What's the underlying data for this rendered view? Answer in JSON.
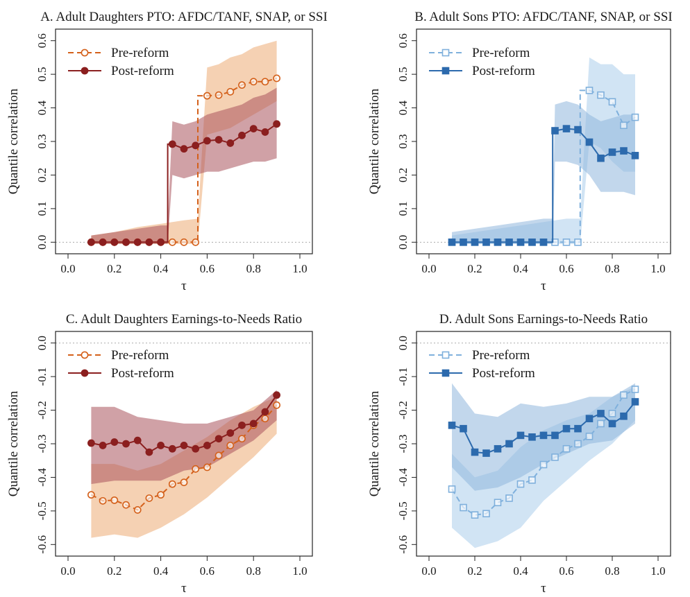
{
  "chart_data": [
    {
      "type": "line",
      "title": "A. Adult Daughters PTO: AFDC/TANF, SNAP, or SSI",
      "xlabel": "τ",
      "ylabel": "Quantile correlation",
      "xlim": [
        0.0,
        1.0
      ],
      "ylim": [
        -0.02,
        0.62
      ],
      "xticks": [
        0.0,
        0.2,
        0.4,
        0.6,
        0.8,
        1.0
      ],
      "xtick_labels": [
        "0.0",
        "0.2",
        "0.4",
        "0.6",
        "0.8",
        "1.0"
      ],
      "yticks": [
        0.0,
        0.1,
        0.2,
        0.3,
        0.4,
        0.5,
        0.6
      ],
      "ytick_labels": [
        "0.0",
        "0.1",
        "0.2",
        "0.3",
        "0.4",
        "0.5",
        "0.6"
      ],
      "legend_position": "top-left",
      "zero_line": true,
      "marker": "circle",
      "series": [
        {
          "name": "Pre-reform",
          "style": "dashed",
          "filled": false,
          "color": "#d4601a",
          "band_color": "#f3c9a6",
          "x": [
            0.1,
            0.15,
            0.2,
            0.25,
            0.3,
            0.35,
            0.4,
            0.45,
            0.5,
            0.55,
            0.6,
            0.65,
            0.7,
            0.75,
            0.8,
            0.85,
            0.9
          ],
          "y": [
            0.0,
            0.0,
            0.0,
            0.0,
            0.0,
            0.0,
            0.0,
            0.0,
            0.0,
            0.0,
            0.436,
            0.438,
            0.448,
            0.468,
            0.478,
            0.478,
            0.488
          ],
          "band_x": [
            0.1,
            0.2,
            0.3,
            0.4,
            0.5,
            0.56,
            0.6,
            0.65,
            0.7,
            0.75,
            0.8,
            0.85,
            0.9
          ],
          "band_lower": [
            -0.005,
            -0.005,
            -0.005,
            -0.005,
            -0.005,
            -0.005,
            0.32,
            0.33,
            0.34,
            0.36,
            0.38,
            0.4,
            0.42
          ],
          "band_upper": [
            0.02,
            0.03,
            0.045,
            0.055,
            0.065,
            0.07,
            0.52,
            0.53,
            0.55,
            0.56,
            0.58,
            0.59,
            0.6
          ],
          "step_x": 0.56
        },
        {
          "name": "Post-reform",
          "style": "solid",
          "filled": true,
          "color": "#8b1f1f",
          "band_color": "#a9545c",
          "x": [
            0.1,
            0.15,
            0.2,
            0.25,
            0.3,
            0.35,
            0.4,
            0.45,
            0.5,
            0.55,
            0.6,
            0.65,
            0.7,
            0.75,
            0.8,
            0.85,
            0.9
          ],
          "y": [
            0.0,
            0.0,
            0.0,
            0.0,
            0.0,
            0.0,
            0.0,
            0.292,
            0.278,
            0.288,
            0.302,
            0.305,
            0.295,
            0.318,
            0.338,
            0.328,
            0.352
          ],
          "band_x": [
            0.1,
            0.2,
            0.3,
            0.4,
            0.43,
            0.45,
            0.5,
            0.55,
            0.6,
            0.65,
            0.7,
            0.75,
            0.8,
            0.85,
            0.9
          ],
          "band_lower": [
            -0.005,
            -0.005,
            -0.005,
            -0.005,
            -0.005,
            0.2,
            0.19,
            0.2,
            0.21,
            0.21,
            0.22,
            0.23,
            0.24,
            0.24,
            0.25
          ],
          "band_upper": [
            0.02,
            0.03,
            0.04,
            0.05,
            0.05,
            0.36,
            0.35,
            0.36,
            0.38,
            0.39,
            0.4,
            0.41,
            0.43,
            0.44,
            0.46
          ],
          "step_x": 0.43
        }
      ]
    },
    {
      "type": "line",
      "title": "B. Adult Sons PTO: AFDC/TANF, SNAP, or SSI",
      "xlabel": "τ",
      "ylabel": "Quantile correlation",
      "xlim": [
        0.0,
        1.0
      ],
      "ylim": [
        -0.02,
        0.62
      ],
      "xticks": [
        0.0,
        0.2,
        0.4,
        0.6,
        0.8,
        1.0
      ],
      "xtick_labels": [
        "0.0",
        "0.2",
        "0.4",
        "0.6",
        "0.8",
        "1.0"
      ],
      "yticks": [
        0.0,
        0.1,
        0.2,
        0.3,
        0.4,
        0.5,
        0.6
      ],
      "ytick_labels": [
        "0.0",
        "0.1",
        "0.2",
        "0.3",
        "0.4",
        "0.5",
        "0.6"
      ],
      "legend_position": "top-left",
      "zero_line": true,
      "marker": "square",
      "series": [
        {
          "name": "Pre-reform",
          "style": "dashed",
          "filled": false,
          "color": "#7fb0dc",
          "band_color": "#c9dff2",
          "x": [
            0.1,
            0.15,
            0.2,
            0.25,
            0.3,
            0.35,
            0.4,
            0.45,
            0.5,
            0.55,
            0.6,
            0.65,
            0.7,
            0.75,
            0.8,
            0.85,
            0.9
          ],
          "y": [
            0.0,
            0.0,
            0.0,
            0.0,
            0.0,
            0.0,
            0.0,
            0.0,
            0.0,
            0.0,
            0.0,
            0.0,
            0.452,
            0.438,
            0.418,
            0.348,
            0.372
          ],
          "band_x": [
            0.1,
            0.2,
            0.3,
            0.4,
            0.5,
            0.6,
            0.66,
            0.7,
            0.75,
            0.8,
            0.85,
            0.9
          ],
          "band_lower": [
            -0.005,
            -0.005,
            -0.005,
            -0.005,
            -0.005,
            -0.005,
            -0.005,
            0.3,
            0.28,
            0.24,
            0.21,
            0.21
          ],
          "band_upper": [
            0.02,
            0.03,
            0.04,
            0.05,
            0.06,
            0.07,
            0.07,
            0.55,
            0.53,
            0.53,
            0.5,
            0.5
          ],
          "step_x": 0.66
        },
        {
          "name": "Post-reform",
          "style": "solid",
          "filled": true,
          "color": "#2c6aad",
          "band_color": "#8fb6dd",
          "x": [
            0.1,
            0.15,
            0.2,
            0.25,
            0.3,
            0.35,
            0.4,
            0.45,
            0.5,
            0.55,
            0.6,
            0.65,
            0.7,
            0.75,
            0.8,
            0.85,
            0.9
          ],
          "y": [
            0.0,
            0.0,
            0.0,
            0.0,
            0.0,
            0.0,
            0.0,
            0.0,
            0.0,
            0.332,
            0.338,
            0.335,
            0.298,
            0.25,
            0.268,
            0.272,
            0.258
          ],
          "band_x": [
            0.1,
            0.2,
            0.3,
            0.4,
            0.5,
            0.54,
            0.55,
            0.6,
            0.65,
            0.7,
            0.75,
            0.8,
            0.85,
            0.9
          ],
          "band_lower": [
            -0.005,
            -0.005,
            -0.005,
            -0.005,
            -0.005,
            -0.005,
            0.24,
            0.24,
            0.23,
            0.2,
            0.15,
            0.15,
            0.15,
            0.14
          ],
          "band_upper": [
            0.03,
            0.04,
            0.05,
            0.06,
            0.07,
            0.07,
            0.41,
            0.42,
            0.41,
            0.38,
            0.36,
            0.37,
            0.38,
            0.38
          ],
          "step_x": 0.54
        }
      ]
    },
    {
      "type": "line",
      "title": "C. Adult Daughters Earnings-to-Needs Ratio",
      "xlabel": "τ",
      "ylabel": "Quantile correlation",
      "xlim": [
        0.0,
        1.0
      ],
      "ylim": [
        -0.62,
        0.02
      ],
      "xticks": [
        0.0,
        0.2,
        0.4,
        0.6,
        0.8,
        1.0
      ],
      "xtick_labels": [
        "0.0",
        "0.2",
        "0.4",
        "0.6",
        "0.8",
        "1.0"
      ],
      "yticks": [
        0.0,
        -0.1,
        -0.2,
        -0.3,
        -0.4,
        -0.5,
        -0.6
      ],
      "ytick_labels": [
        "0.0",
        "-0.1",
        "-0.2",
        "-0.3",
        "-0.4",
        "-0.5",
        "-0.6"
      ],
      "legend_position": "top-left",
      "zero_line": true,
      "marker": "circle",
      "series": [
        {
          "name": "Pre-reform",
          "style": "dashed",
          "filled": false,
          "color": "#d4601a",
          "band_color": "#f3c9a6",
          "x": [
            0.1,
            0.15,
            0.2,
            0.25,
            0.3,
            0.35,
            0.4,
            0.45,
            0.5,
            0.55,
            0.6,
            0.65,
            0.7,
            0.75,
            0.8,
            0.85,
            0.9
          ],
          "y": [
            -0.452,
            -0.47,
            -0.468,
            -0.482,
            -0.497,
            -0.462,
            -0.452,
            -0.42,
            -0.415,
            -0.375,
            -0.37,
            -0.335,
            -0.305,
            -0.285,
            -0.245,
            -0.225,
            -0.185
          ],
          "band_x": [
            0.1,
            0.2,
            0.3,
            0.4,
            0.5,
            0.6,
            0.7,
            0.8,
            0.9
          ],
          "band_lower": [
            -0.58,
            -0.57,
            -0.58,
            -0.55,
            -0.51,
            -0.46,
            -0.4,
            -0.34,
            -0.27
          ],
          "band_upper": [
            -0.36,
            -0.36,
            -0.38,
            -0.36,
            -0.32,
            -0.28,
            -0.23,
            -0.19,
            -0.16
          ]
        },
        {
          "name": "Post-reform",
          "style": "solid",
          "filled": true,
          "color": "#8b1f1f",
          "band_color": "#a9545c",
          "x": [
            0.1,
            0.15,
            0.2,
            0.25,
            0.3,
            0.35,
            0.4,
            0.45,
            0.5,
            0.55,
            0.6,
            0.65,
            0.7,
            0.75,
            0.8,
            0.85,
            0.9
          ],
          "y": [
            -0.298,
            -0.305,
            -0.295,
            -0.3,
            -0.29,
            -0.325,
            -0.305,
            -0.315,
            -0.305,
            -0.315,
            -0.305,
            -0.285,
            -0.268,
            -0.245,
            -0.24,
            -0.205,
            -0.155
          ],
          "band_x": [
            0.1,
            0.2,
            0.3,
            0.4,
            0.5,
            0.6,
            0.7,
            0.8,
            0.9
          ],
          "band_lower": [
            -0.42,
            -0.41,
            -0.41,
            -0.41,
            -0.38,
            -0.37,
            -0.33,
            -0.29,
            -0.23
          ],
          "band_upper": [
            -0.19,
            -0.19,
            -0.22,
            -0.23,
            -0.24,
            -0.24,
            -0.22,
            -0.2,
            -0.14
          ]
        }
      ]
    },
    {
      "type": "line",
      "title": "D. Adult Sons Earnings-to-Needs Ratio",
      "xlabel": "τ",
      "ylabel": "Quantile correlation",
      "xlim": [
        0.0,
        1.0
      ],
      "ylim": [
        -0.62,
        0.02
      ],
      "xticks": [
        0.0,
        0.2,
        0.4,
        0.6,
        0.8,
        1.0
      ],
      "xtick_labels": [
        "0.0",
        "0.2",
        "0.4",
        "0.6",
        "0.8",
        "1.0"
      ],
      "yticks": [
        0.0,
        -0.1,
        -0.2,
        -0.3,
        -0.4,
        -0.5,
        -0.6
      ],
      "ytick_labels": [
        "0.0",
        "-0.1",
        "-0.2",
        "-0.3",
        "-0.4",
        "-0.5",
        "-0.6"
      ],
      "legend_position": "top-left",
      "zero_line": true,
      "marker": "square",
      "series": [
        {
          "name": "Pre-reform",
          "style": "dashed",
          "filled": false,
          "color": "#7fb0dc",
          "band_color": "#c9dff2",
          "x": [
            0.1,
            0.15,
            0.2,
            0.25,
            0.3,
            0.35,
            0.4,
            0.45,
            0.5,
            0.55,
            0.6,
            0.65,
            0.7,
            0.75,
            0.8,
            0.85,
            0.9
          ],
          "y": [
            -0.435,
            -0.49,
            -0.512,
            -0.508,
            -0.475,
            -0.462,
            -0.42,
            -0.408,
            -0.362,
            -0.34,
            -0.315,
            -0.3,
            -0.278,
            -0.24,
            -0.21,
            -0.155,
            -0.138
          ],
          "band_x": [
            0.1,
            0.2,
            0.3,
            0.4,
            0.5,
            0.6,
            0.7,
            0.8,
            0.9
          ],
          "band_lower": [
            -0.55,
            -0.61,
            -0.59,
            -0.55,
            -0.47,
            -0.41,
            -0.35,
            -0.3,
            -0.23
          ],
          "band_upper": [
            -0.33,
            -0.4,
            -0.38,
            -0.31,
            -0.26,
            -0.23,
            -0.21,
            -0.16,
            -0.13
          ]
        },
        {
          "name": "Post-reform",
          "style": "solid",
          "filled": true,
          "color": "#2c6aad",
          "band_color": "#8fb6dd",
          "x": [
            0.1,
            0.15,
            0.2,
            0.25,
            0.3,
            0.35,
            0.4,
            0.45,
            0.5,
            0.55,
            0.6,
            0.65,
            0.7,
            0.75,
            0.8,
            0.85,
            0.9
          ],
          "y": [
            -0.245,
            -0.255,
            -0.325,
            -0.328,
            -0.315,
            -0.3,
            -0.275,
            -0.28,
            -0.275,
            -0.275,
            -0.255,
            -0.255,
            -0.225,
            -0.21,
            -0.24,
            -0.218,
            -0.175
          ],
          "band_x": [
            0.1,
            0.2,
            0.3,
            0.4,
            0.5,
            0.6,
            0.7,
            0.8,
            0.9
          ],
          "band_lower": [
            -0.37,
            -0.44,
            -0.43,
            -0.4,
            -0.36,
            -0.33,
            -0.3,
            -0.29,
            -0.24
          ],
          "band_upper": [
            -0.12,
            -0.21,
            -0.22,
            -0.18,
            -0.19,
            -0.18,
            -0.16,
            -0.16,
            -0.12
          ]
        }
      ]
    }
  ]
}
